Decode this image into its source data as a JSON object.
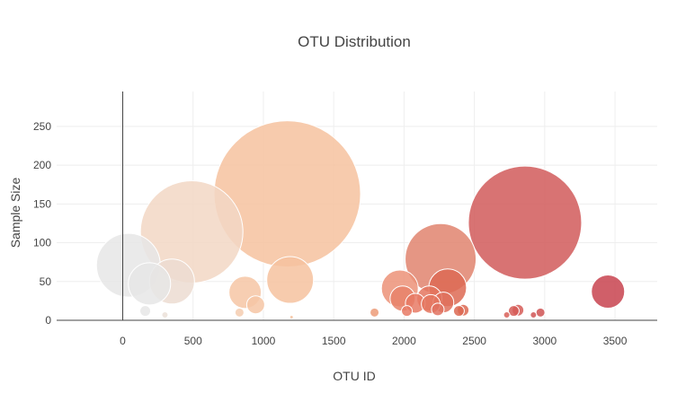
{
  "chart_data": {
    "type": "scatter",
    "variant": "bubble",
    "title": "OTU Distribution",
    "xlabel": "OTU ID",
    "ylabel": "Sample Size",
    "xlim": [
      -470,
      3800
    ],
    "ylim": [
      0,
      295
    ],
    "xticks": [
      0,
      500,
      1000,
      1500,
      2000,
      2500,
      3000,
      3500
    ],
    "yticks": [
      0,
      50,
      100,
      150,
      200,
      250
    ],
    "grid": true,
    "legend": "none",
    "colorscale": [
      "#e6e6e6",
      "#f2d7c4",
      "#f6c29f",
      "#ec9b78",
      "#dd6a53",
      "#d15a5a",
      "#c8434f"
    ],
    "points": [
      {
        "x": 40,
        "y": 71,
        "size": 71,
        "color": "#e6e6e6"
      },
      {
        "x": 160,
        "y": 12,
        "size": 12,
        "color": "#e6e6e6"
      },
      {
        "x": 190,
        "y": 47,
        "size": 47,
        "color": "#e6e6e6"
      },
      {
        "x": 300,
        "y": 7,
        "size": 7,
        "color": "#ebe0d8"
      },
      {
        "x": 350,
        "y": 50,
        "size": 50,
        "color": "#ecdcd1"
      },
      {
        "x": 490,
        "y": 114,
        "size": 114,
        "color": "#f2d7c4"
      },
      {
        "x": 830,
        "y": 10,
        "size": 10,
        "color": "#f4cdb0"
      },
      {
        "x": 870,
        "y": 36,
        "size": 36,
        "color": "#f6c5a4"
      },
      {
        "x": 945,
        "y": 20,
        "size": 20,
        "color": "#f6c5a4"
      },
      {
        "x": 1170,
        "y": 163,
        "size": 163,
        "color": "#f6c29f"
      },
      {
        "x": 1190,
        "y": 52,
        "size": 52,
        "color": "#f6c29f"
      },
      {
        "x": 1200,
        "y": 4,
        "size": 4,
        "color": "#f6c29f"
      },
      {
        "x": 1790,
        "y": 10,
        "size": 10,
        "color": "#ec9b78"
      },
      {
        "x": 1970,
        "y": 41,
        "size": 41,
        "color": "#ec9278"
      },
      {
        "x": 1990,
        "y": 28,
        "size": 28,
        "color": "#e8826a"
      },
      {
        "x": 2020,
        "y": 12,
        "size": 12,
        "color": "#e77a65"
      },
      {
        "x": 2080,
        "y": 22,
        "size": 22,
        "color": "#e77a65"
      },
      {
        "x": 2180,
        "y": 28,
        "size": 28,
        "color": "#e4755f"
      },
      {
        "x": 2190,
        "y": 21,
        "size": 21,
        "color": "#e4755f"
      },
      {
        "x": 2260,
        "y": 79,
        "size": 79,
        "color": "#e0846e"
      },
      {
        "x": 2240,
        "y": 14,
        "size": 14,
        "color": "#e17260"
      },
      {
        "x": 2280,
        "y": 23,
        "size": 23,
        "color": "#df705c"
      },
      {
        "x": 2310,
        "y": 42,
        "size": 42,
        "color": "#dd6a53"
      },
      {
        "x": 2390,
        "y": 12,
        "size": 12,
        "color": "#dc6852"
      },
      {
        "x": 2420,
        "y": 13,
        "size": 13,
        "color": "#dc6852"
      },
      {
        "x": 2730,
        "y": 7,
        "size": 7,
        "color": "#d86059"
      },
      {
        "x": 2780,
        "y": 12,
        "size": 12,
        "color": "#d65c57"
      },
      {
        "x": 2810,
        "y": 13,
        "size": 13,
        "color": "#d65c57"
      },
      {
        "x": 2860,
        "y": 126,
        "size": 126,
        "color": "#d15a5a"
      },
      {
        "x": 2920,
        "y": 7,
        "size": 7,
        "color": "#d05656"
      },
      {
        "x": 2970,
        "y": 10,
        "size": 10,
        "color": "#cf5454"
      },
      {
        "x": 3450,
        "y": 37,
        "size": 37,
        "color": "#c8434f"
      }
    ]
  }
}
